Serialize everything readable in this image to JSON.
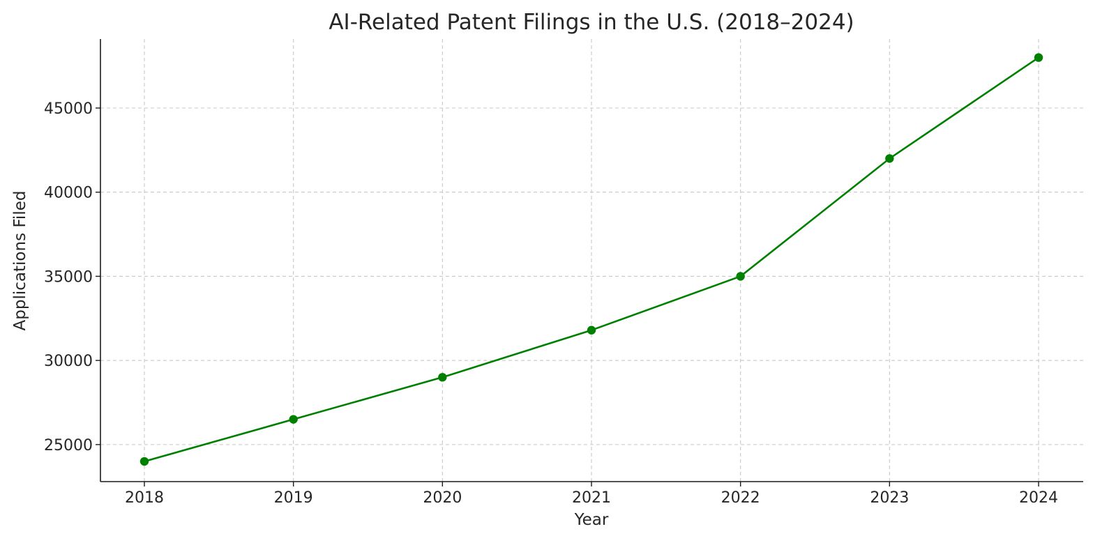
{
  "chart_data": {
    "type": "line",
    "title": "AI-Related Patent Filings in the U.S. (2018–2024)",
    "xlabel": "Year",
    "ylabel": "Applications Filed",
    "x": [
      "2018",
      "2019",
      "2020",
      "2021",
      "2022",
      "2023",
      "2024"
    ],
    "y_ticks": [
      25000,
      30000,
      35000,
      40000,
      45000
    ],
    "ylim": [
      22800,
      49100
    ],
    "series": [
      {
        "values": [
          24000,
          26500,
          29000,
          31800,
          35000,
          42000,
          48000
        ],
        "color": "#008000",
        "marker": "circle"
      }
    ],
    "grid": true,
    "legend": "none"
  }
}
